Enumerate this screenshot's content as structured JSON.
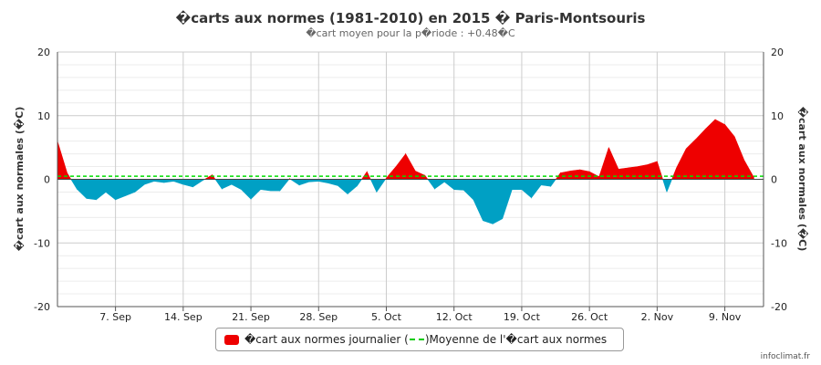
{
  "chart_data": {
    "type": "area",
    "title": "�carts aux normes (1981-2010) en 2015 � Paris-Montsouris",
    "subtitle": "�cart moyen pour la p�riode : +0.48�C",
    "ylabel_left": "�cart aux normales (�C)",
    "ylabel_right": "�cart aux normales (�C)",
    "ylim": [
      -20,
      20
    ],
    "yticks": [
      20,
      10,
      0,
      -10,
      -20
    ],
    "x_day_range": [
      0,
      73
    ],
    "xticks": [
      {
        "day": 6,
        "label": "7. Sep"
      },
      {
        "day": 13,
        "label": "14. Sep"
      },
      {
        "day": 20,
        "label": "21. Sep"
      },
      {
        "day": 27,
        "label": "28. Sep"
      },
      {
        "day": 34,
        "label": "5. Oct"
      },
      {
        "day": 41,
        "label": "12. Oct"
      },
      {
        "day": 48,
        "label": "19. Oct"
      },
      {
        "day": 55,
        "label": "26. Oct"
      },
      {
        "day": 62,
        "label": "2. Nov"
      },
      {
        "day": 69,
        "label": "9. Nov"
      }
    ],
    "grid": true,
    "mean_line": 0.48,
    "series": [
      {
        "name": "�cart aux normes journalier (�C)",
        "positive_color": "#ee0000",
        "negative_color": "#00a0c4",
        "values": [
          6.0,
          1.0,
          -1.5,
          -3.0,
          -3.2,
          -2.0,
          -3.2,
          -2.6,
          -2.0,
          -0.8,
          -0.3,
          -0.5,
          -0.3,
          -0.8,
          -1.2,
          -0.2,
          0.7,
          -1.5,
          -0.8,
          -1.6,
          -3.1,
          -1.6,
          -1.8,
          -1.8,
          0.1,
          -0.9,
          -0.4,
          -0.3,
          -0.6,
          -1.0,
          -2.3,
          -1.0,
          1.2,
          -2.0,
          0.2,
          2.0,
          4.0,
          1.3,
          0.6,
          -1.5,
          -0.4,
          -1.6,
          -1.7,
          -3.2,
          -6.5,
          -7.0,
          -6.2,
          -1.6,
          -1.6,
          -2.9,
          -0.9,
          -1.1,
          1.0,
          1.3,
          1.5,
          1.2,
          0.4,
          5.0,
          1.6,
          1.8,
          2.0,
          2.3,
          2.8,
          -2.0,
          1.8,
          4.8,
          6.3,
          7.9,
          9.4,
          8.6,
          6.7,
          3.0,
          0.3
        ]
      }
    ],
    "legend": {
      "series_label": "�cart aux normes journalier (",
      "mean_label": ")Moyenne de l'�cart aux normes"
    }
  },
  "credit": "infoclimat.fr"
}
